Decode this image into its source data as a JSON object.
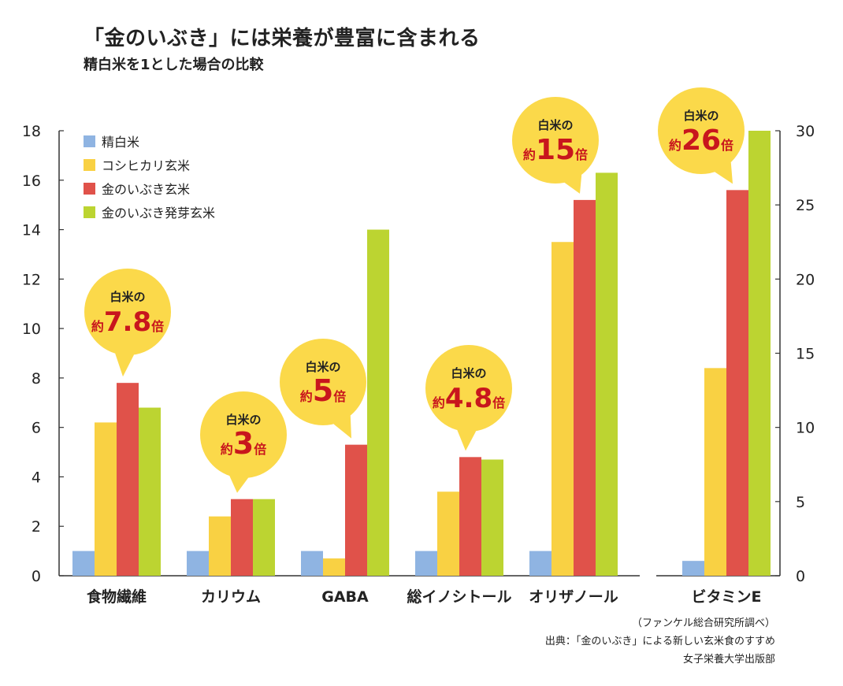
{
  "header": {
    "title": "「金のいぶき」には栄養が豊富に含まれる",
    "subtitle": "精白米を1とした場合の比較"
  },
  "footer": {
    "survey": "（ファンケル総合研究所調べ）",
    "source": "出典：「金のいぶき」による新しい玄米食のすすめ",
    "publisher": "女子栄養大学出版部"
  },
  "chart_data": {
    "type": "bar",
    "title": "「金のいぶき」には栄養が豊富に含まれる",
    "subtitle": "精白米を1とした場合の比較",
    "categories": [
      "食物繊維",
      "カリウム",
      "GABA",
      "総イノシトール",
      "オリザノール",
      "ビタミンE"
    ],
    "series": [
      {
        "name": "精白米",
        "color": "#8fb4e2",
        "values": [
          1,
          1,
          1,
          1,
          1,
          1
        ]
      },
      {
        "name": "コシヒカリ玄米",
        "color": "#f9d143",
        "values": [
          6.2,
          2.4,
          0.7,
          3.4,
          13.5,
          14
        ]
      },
      {
        "name": "金のいぶき玄米",
        "color": "#e0524a",
        "values": [
          7.8,
          3.1,
          5.3,
          4.8,
          15.2,
          26
        ]
      },
      {
        "name": "金のいぶき発芽玄米",
        "color": "#bcd431",
        "values": [
          6.8,
          3.1,
          14,
          4.7,
          16.3,
          30
        ]
      }
    ],
    "left_axis": {
      "ylim": [
        0,
        18
      ],
      "ticks": [
        0,
        2,
        4,
        6,
        8,
        10,
        12,
        14,
        16,
        18
      ],
      "applies_to": [
        "食物繊維",
        "カリウム",
        "GABA",
        "総イノシトール",
        "オリザノール"
      ]
    },
    "right_axis": {
      "ylim": [
        0,
        30
      ],
      "ticks": [
        0,
        5,
        10,
        15,
        20,
        25,
        30
      ],
      "applies_to": [
        "ビタミンE"
      ]
    },
    "legend_position": "top-left",
    "grid": false,
    "annotations": [
      {
        "category": "食物繊維",
        "line1": "白米の",
        "prefix": "約",
        "value": "7.8",
        "suffix": "倍"
      },
      {
        "category": "カリウム",
        "line1": "白米の",
        "prefix": "約",
        "value": "3",
        "suffix": "倍"
      },
      {
        "category": "GABA",
        "line1": "白米の",
        "prefix": "約",
        "value": "5",
        "suffix": "倍"
      },
      {
        "category": "総イノシトール",
        "line1": "白米の",
        "prefix": "約",
        "value": "4.8",
        "suffix": "倍"
      },
      {
        "category": "オリザノール",
        "line1": "白米の",
        "prefix": "約",
        "value": "15",
        "suffix": "倍"
      },
      {
        "category": "ビタミンE",
        "line1": "白米の",
        "prefix": "約",
        "value": "26",
        "suffix": "倍"
      }
    ],
    "bubble_color": "#fbd94a"
  }
}
